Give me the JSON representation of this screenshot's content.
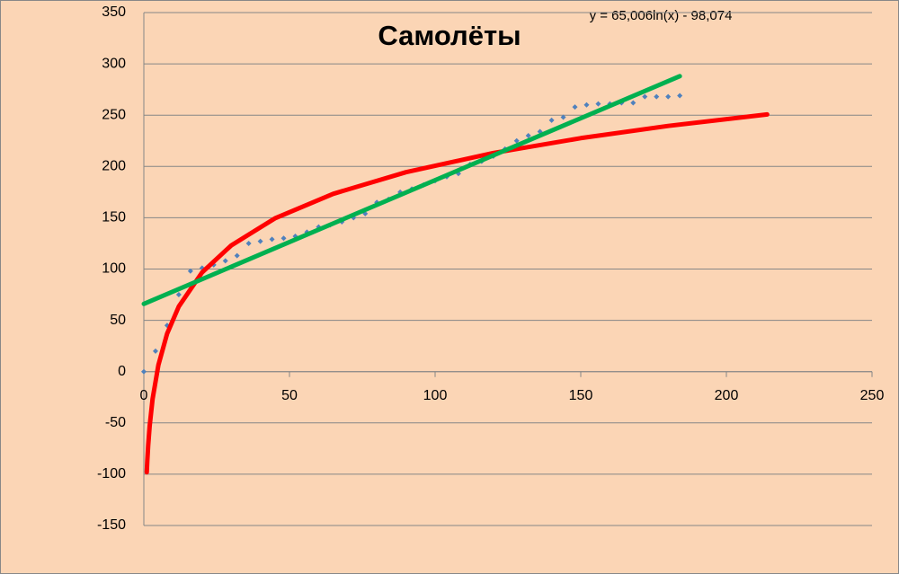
{
  "chart_data": {
    "type": "scatter",
    "title": "Самолёты",
    "annotations": [
      "y = 65,006ln(x) - 98,074"
    ],
    "xlim": [
      0,
      250
    ],
    "xticks": [
      0,
      50,
      100,
      150,
      200,
      250
    ],
    "ylim": [
      -150,
      350
    ],
    "yticks": [
      -150,
      -100,
      -50,
      0,
      50,
      100,
      150,
      200,
      250,
      300,
      350
    ],
    "grid": true,
    "series": [
      {
        "type": "scatter",
        "color": "#4f81bd",
        "x": [
          0,
          4,
          8,
          12,
          16,
          20,
          24,
          28,
          32,
          36,
          40,
          44,
          48,
          52,
          56,
          60,
          64,
          68,
          72,
          76,
          80,
          84,
          88,
          92,
          96,
          100,
          104,
          108,
          112,
          116,
          120,
          124,
          128,
          132,
          136,
          140,
          144,
          148,
          152,
          156,
          160,
          164,
          168,
          172,
          176,
          180,
          184
        ],
        "values": [
          0,
          20,
          45,
          75,
          98,
          101,
          104,
          108,
          113,
          125,
          127,
          129,
          130,
          132,
          136,
          141,
          143,
          146,
          150,
          154,
          165,
          168,
          175,
          178,
          182,
          186,
          190,
          193,
          202,
          205,
          210,
          217,
          225,
          230,
          234,
          245,
          248,
          258,
          260,
          261,
          261,
          262,
          262,
          268,
          268,
          268,
          269
        ]
      },
      {
        "type": "line",
        "color": "#ff0000",
        "x": [
          1,
          1.2,
          1.5,
          2,
          3,
          5,
          8,
          12,
          20,
          30,
          45,
          65,
          90,
          120,
          150,
          180,
          214
        ],
        "values": [
          -98.1,
          -86.2,
          -71.7,
          -53.0,
          -26.7,
          6.5,
          37.1,
          63.5,
          96.7,
          123.0,
          149.4,
          173.3,
          194.4,
          213.1,
          227.6,
          239.5,
          250.7
        ]
      },
      {
        "type": "line",
        "color": "#00b050",
        "x": [
          0,
          184
        ],
        "values": [
          66,
          288
        ]
      }
    ]
  }
}
